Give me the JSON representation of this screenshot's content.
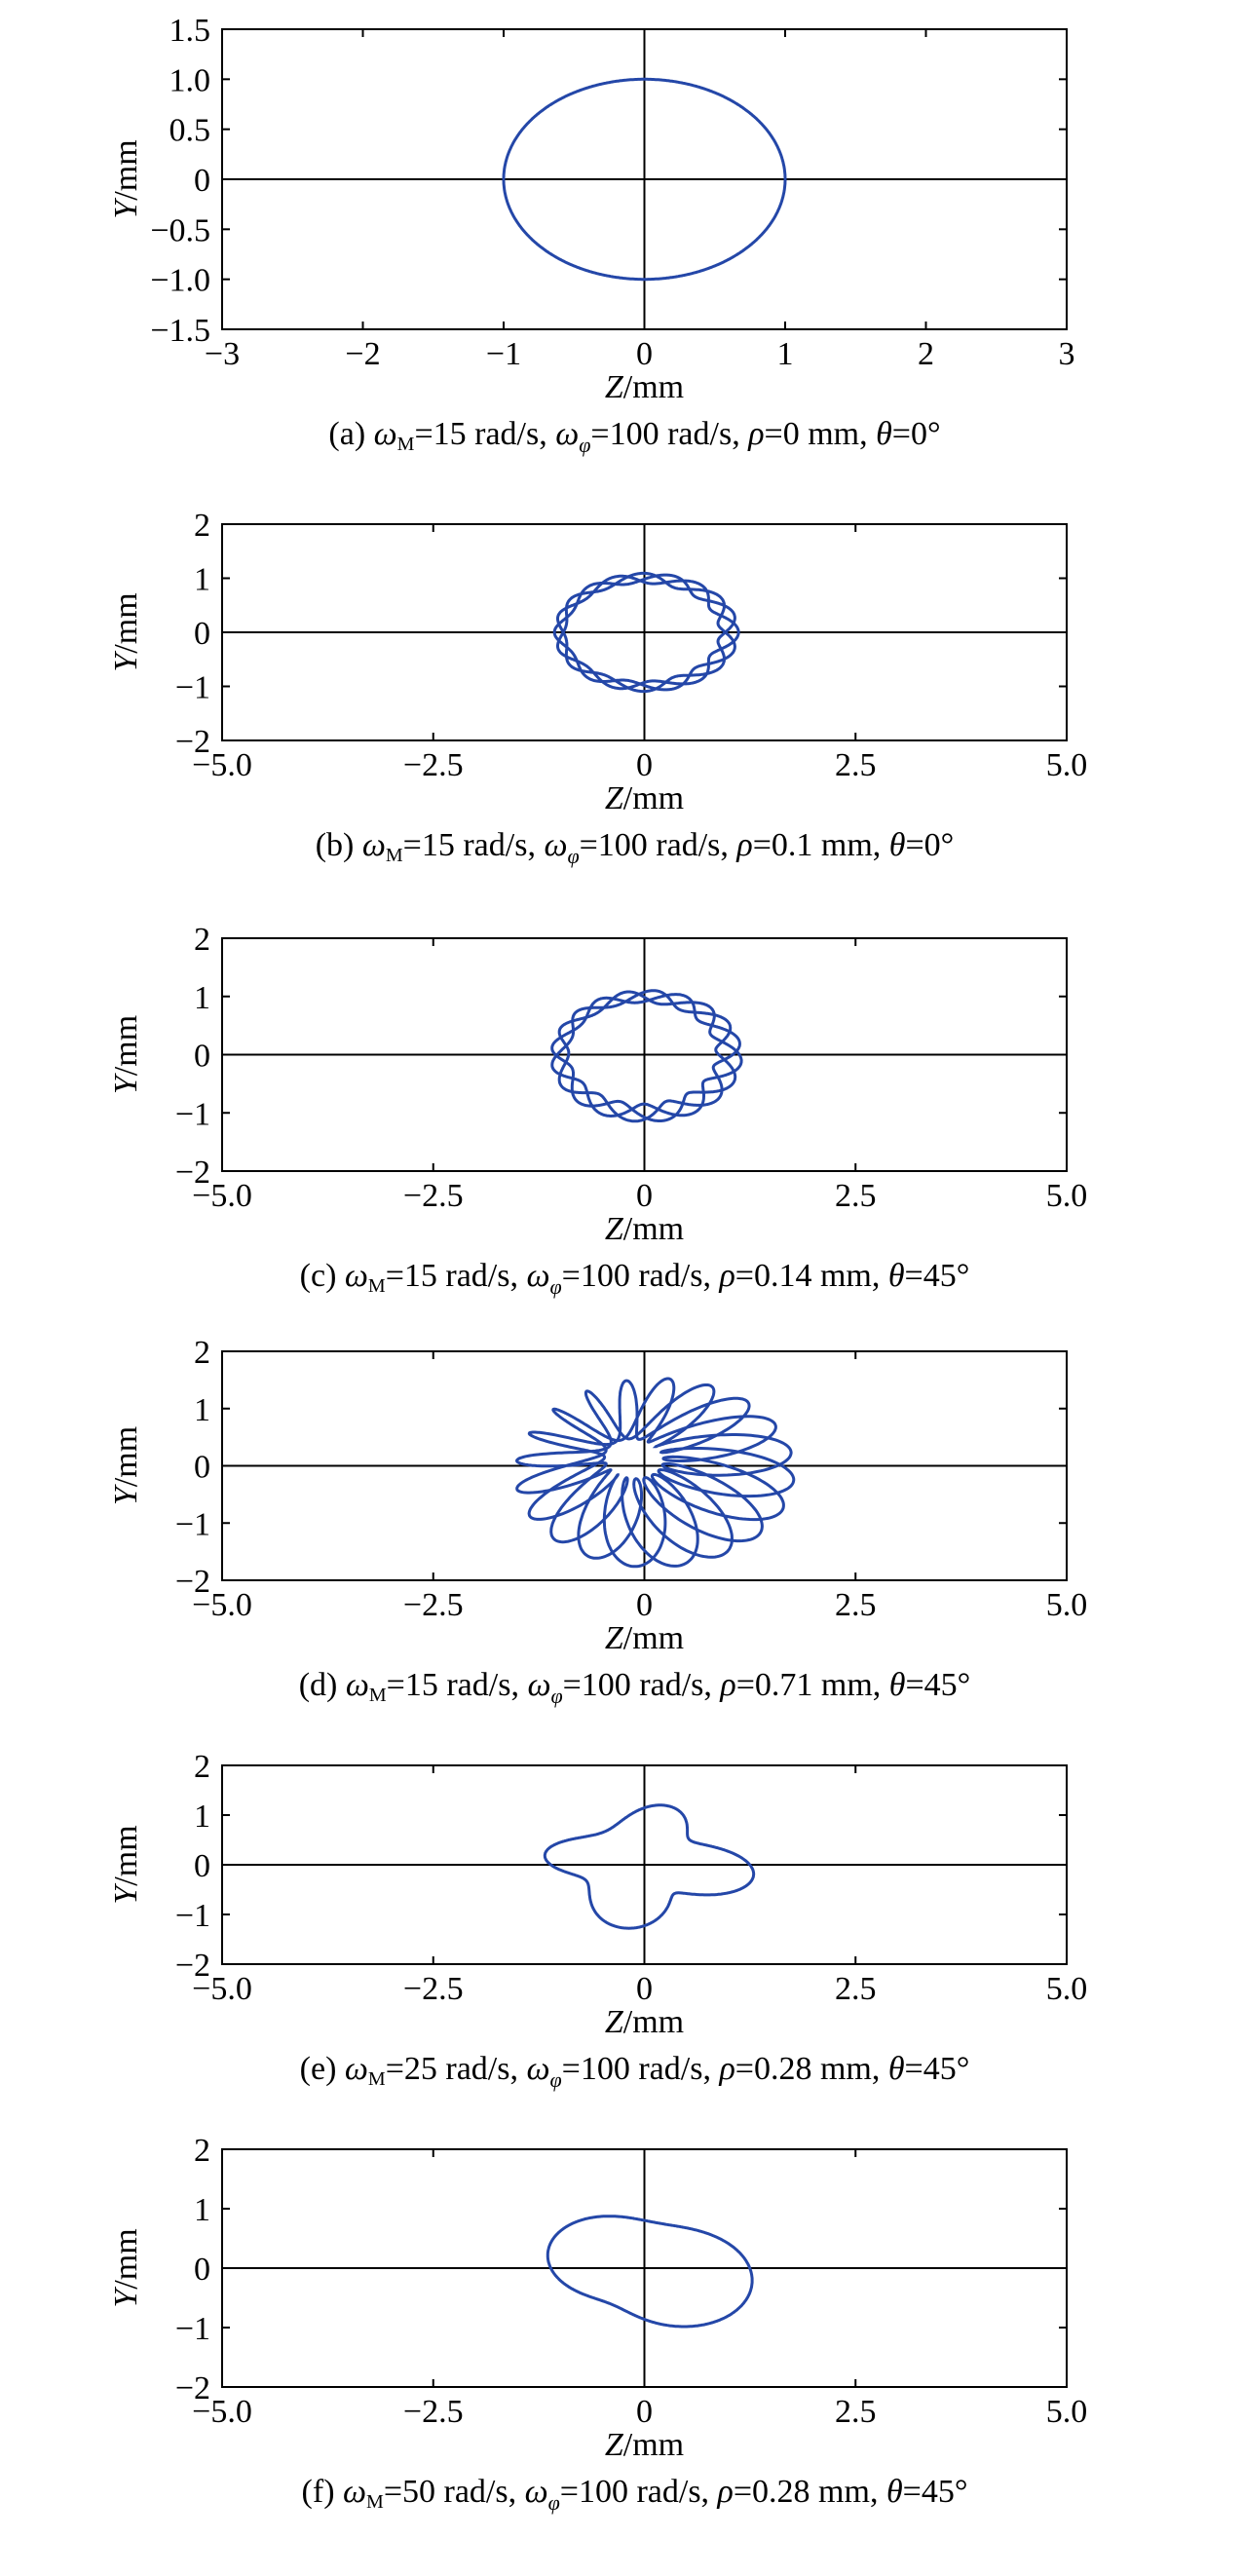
{
  "chart_data": [
    {
      "type": "line",
      "caption": {
        "label": "(a)",
        "omega_m": "=15 rad/s,",
        "omega_phi": "=100 rad/s,",
        "rho": "=0 mm,",
        "theta": "=0°"
      },
      "xlabel": {
        "var": "Z",
        "unit": "/mm"
      },
      "ylabel": {
        "var": "Y",
        "unit": "/mm"
      },
      "xlim": [
        -3,
        3
      ],
      "ylim": [
        -1.5,
        1.5
      ],
      "x_ticks": [
        -3,
        -2,
        -1,
        0,
        1,
        2,
        3
      ],
      "x_tick_labels": [
        "−3",
        "−2",
        "−1",
        "0",
        "1",
        "2",
        "3"
      ],
      "y_ticks": [
        1.5,
        1.0,
        0.5,
        0,
        -0.5,
        -1.0,
        -1.5
      ],
      "y_tick_labels": [
        "1.5",
        "1.0",
        "0.5",
        "0",
        "−0.5",
        "−1.0",
        "−1.5"
      ],
      "curve": {
        "omega_m": 15,
        "omega_phi": 100,
        "rho": 0,
        "theta_deg": 0,
        "base_radius": 1.0
      },
      "color": "#2447a8"
    },
    {
      "type": "line",
      "caption": {
        "label": "(b)",
        "omega_m": "=15 rad/s,",
        "omega_phi": "=100 rad/s,",
        "rho": "=0.1 mm,",
        "theta": "=0°"
      },
      "xlabel": {
        "var": "Z",
        "unit": "/mm"
      },
      "ylabel": {
        "var": "Y",
        "unit": "/mm"
      },
      "xlim": [
        -5,
        5
      ],
      "ylim": [
        -2,
        2
      ],
      "x_ticks": [
        -5,
        -2.5,
        0,
        2.5,
        5
      ],
      "x_tick_labels": [
        "−5.0",
        "−2.5",
        "0",
        "2.5",
        "5.0"
      ],
      "y_ticks": [
        2,
        1,
        0,
        -1,
        -2
      ],
      "y_tick_labels": [
        "2",
        "1",
        "0",
        "−1",
        "−2"
      ],
      "curve": {
        "omega_m": 15,
        "omega_phi": 100,
        "rho": 0.1,
        "theta_deg": 0,
        "base_radius": 1.0
      },
      "color": "#2447a8"
    },
    {
      "type": "line",
      "caption": {
        "label": "(c)",
        "omega_m": "=15 rad/s,",
        "omega_phi": "=100 rad/s,",
        "rho": "=0.14 mm,",
        "theta": "=45°"
      },
      "xlabel": {
        "var": "Z",
        "unit": "/mm"
      },
      "ylabel": {
        "var": "Y",
        "unit": "/mm"
      },
      "xlim": [
        -5,
        5
      ],
      "ylim": [
        -2,
        2
      ],
      "x_ticks": [
        -5,
        -2.5,
        0,
        2.5,
        5
      ],
      "x_tick_labels": [
        "−5.0",
        "−2.5",
        "0",
        "2.5",
        "5.0"
      ],
      "y_ticks": [
        2,
        1,
        0,
        -1,
        -2
      ],
      "y_tick_labels": [
        "2",
        "1",
        "0",
        "−1",
        "−2"
      ],
      "curve": {
        "omega_m": 15,
        "omega_phi": 100,
        "rho": 0.14,
        "theta_deg": 45,
        "base_radius": 1.0
      },
      "color": "#2447a8"
    },
    {
      "type": "line",
      "caption": {
        "label": "(d)",
        "omega_m": "=15 rad/s,",
        "omega_phi": "=100 rad/s,",
        "rho": "=0.71 mm,",
        "theta": "=45°"
      },
      "xlabel": {
        "var": "Z",
        "unit": "/mm"
      },
      "ylabel": {
        "var": "Y",
        "unit": "/mm"
      },
      "xlim": [
        -5,
        5
      ],
      "ylim": [
        -2,
        2
      ],
      "x_ticks": [
        -5,
        -2.5,
        0,
        2.5,
        5
      ],
      "x_tick_labels": [
        "−5.0",
        "−2.5",
        "0",
        "2.5",
        "5.0"
      ],
      "y_ticks": [
        2,
        1,
        0,
        -1,
        -2
      ],
      "y_tick_labels": [
        "2",
        "1",
        "0",
        "−1",
        "−2"
      ],
      "curve": {
        "omega_m": 15,
        "omega_phi": 100,
        "rho": 0.71,
        "theta_deg": 45,
        "base_radius": 1.0
      },
      "color": "#2447a8"
    },
    {
      "type": "line",
      "caption": {
        "label": "(e)",
        "omega_m": "=25 rad/s,",
        "omega_phi": "=100 rad/s,",
        "rho": "=0.28 mm,",
        "theta": "=45°"
      },
      "xlabel": {
        "var": "Z",
        "unit": "/mm"
      },
      "ylabel": {
        "var": "Y",
        "unit": "/mm"
      },
      "xlim": [
        -5,
        5
      ],
      "ylim": [
        -2,
        2
      ],
      "x_ticks": [
        -5,
        -2.5,
        0,
        2.5,
        5
      ],
      "x_tick_labels": [
        "−5.0",
        "−2.5",
        "0",
        "2.5",
        "5.0"
      ],
      "y_ticks": [
        2,
        1,
        0,
        -1,
        -2
      ],
      "y_tick_labels": [
        "2",
        "1",
        "0",
        "−1",
        "−2"
      ],
      "curve": {
        "omega_m": 25,
        "omega_phi": 100,
        "rho": 0.28,
        "theta_deg": 45,
        "base_radius": 1.0
      },
      "color": "#2447a8"
    },
    {
      "type": "line",
      "caption": {
        "label": "(f)",
        "omega_m": "=50 rad/s,",
        "omega_phi": "=100 rad/s,",
        "rho": "=0.28 mm,",
        "theta": "=45°"
      },
      "xlabel": {
        "var": "Z",
        "unit": "/mm"
      },
      "ylabel": {
        "var": "Y",
        "unit": "/mm"
      },
      "xlim": [
        -5,
        5
      ],
      "ylim": [
        -2,
        2
      ],
      "x_ticks": [
        -5,
        -2.5,
        0,
        2.5,
        5
      ],
      "x_tick_labels": [
        "−5.0",
        "−2.5",
        "0",
        "2.5",
        "5.0"
      ],
      "y_ticks": [
        2,
        1,
        0,
        -1,
        -2
      ],
      "y_tick_labels": [
        "2",
        "1",
        "0",
        "−1",
        "−2"
      ],
      "curve": {
        "omega_m": 50,
        "omega_phi": 100,
        "rho": 0.28,
        "theta_deg": 45,
        "base_radius": 1.0
      },
      "color": "#2447a8"
    }
  ]
}
